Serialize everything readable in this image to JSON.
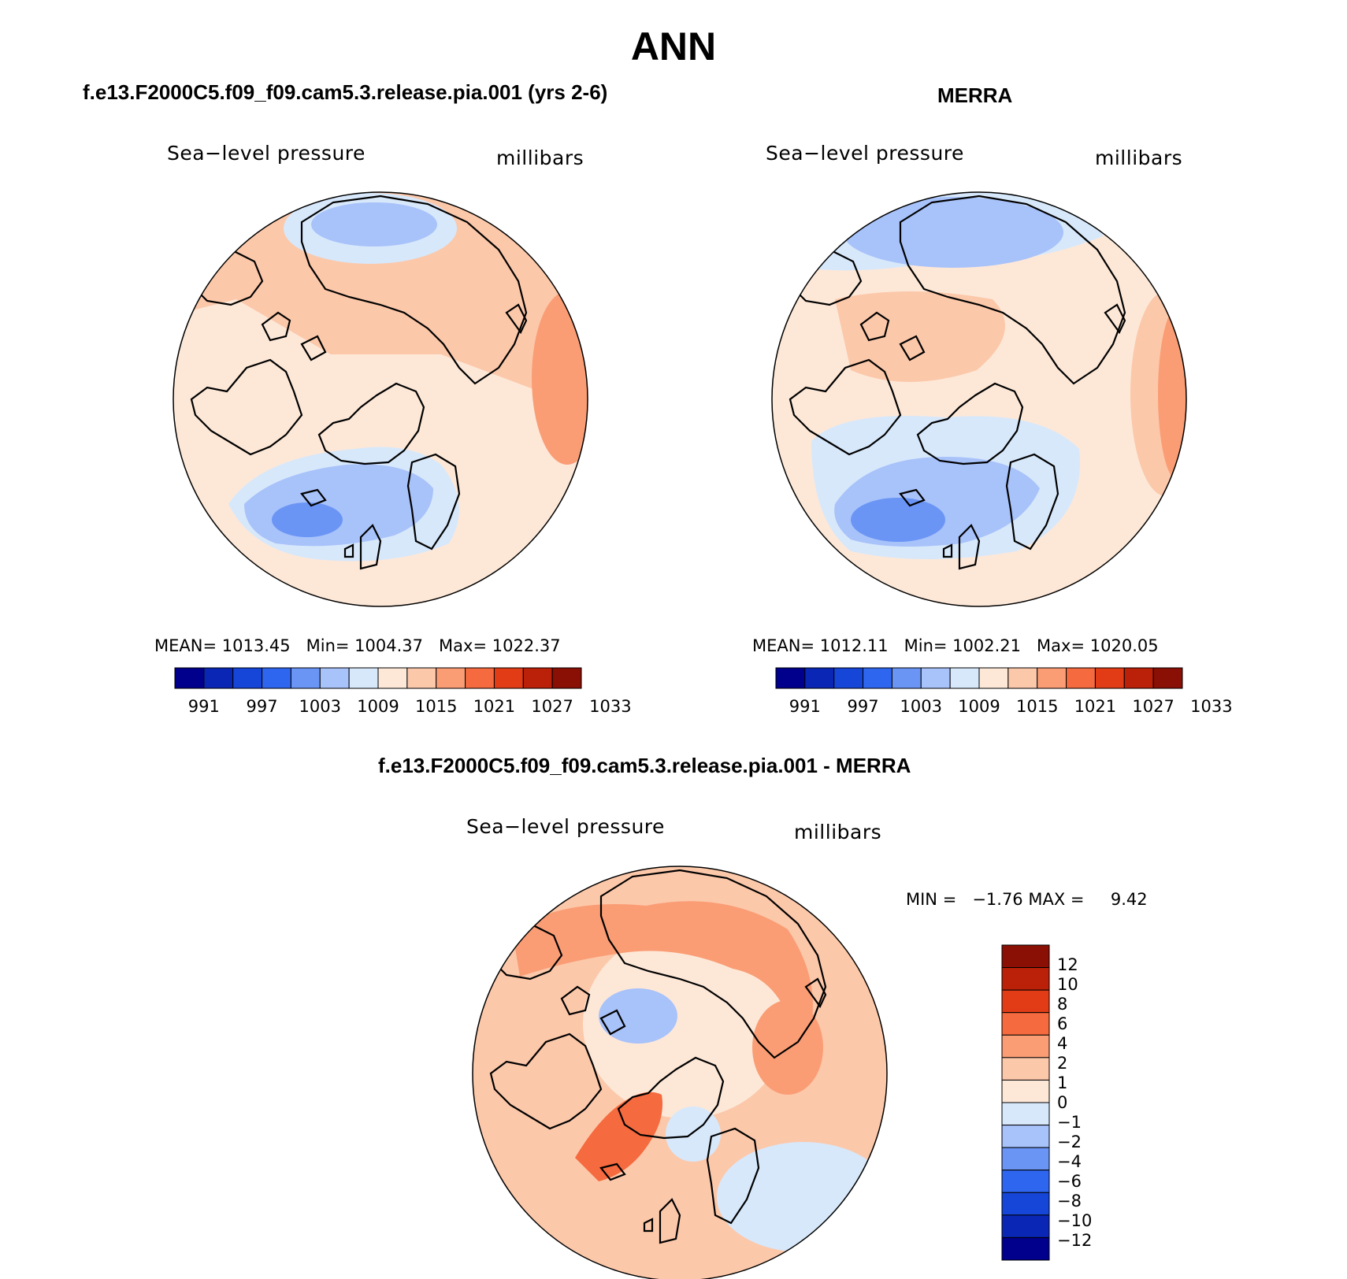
{
  "page": {
    "title": "ANN"
  },
  "panels": {
    "model": {
      "title": "f.e13.F2000C5.f09_f09.cam5.3.release.pia.001 (yrs 2-6)",
      "field": "Sea−level pressure",
      "units": "millibars",
      "stats": {
        "mean_label": "MEAN=",
        "mean": "1013.45",
        "min_label": "Min=",
        "min": "1004.37",
        "max_label": "Max=",
        "max": "1022.37"
      }
    },
    "obs": {
      "title": "MERRA",
      "field": "Sea−level pressure",
      "units": "millibars",
      "stats": {
        "mean_label": "MEAN=",
        "mean": "1012.11",
        "min_label": "Min=",
        "min": "1002.21",
        "max_label": "Max=",
        "max": "1020.05"
      }
    },
    "diff": {
      "title": "f.e13.F2000C5.f09_f09.cam5.3.release.pia.001 - MERRA",
      "field": "Sea−level pressure",
      "units": "millibars",
      "minmax": "MIN =   −1.76 MAX =     9.42"
    }
  },
  "colorbars": {
    "abs": {
      "colors": [
        "#00008c",
        "#0a26b4",
        "#1546d8",
        "#2f66f0",
        "#6a95f5",
        "#a8c2fa",
        "#d7e8fb",
        "#fde8d8",
        "#fcc8aa",
        "#fa9d75",
        "#f56a3e",
        "#e23c16",
        "#bb2108",
        "#8a0f05"
      ],
      "labels": [
        "991",
        "997",
        "1003",
        "1009",
        "1015",
        "1021",
        "1027",
        "1033"
      ]
    },
    "diff": {
      "colors": [
        "#8a0f05",
        "#bb2108",
        "#e23c16",
        "#f56a3e",
        "#fa9d75",
        "#fcc8aa",
        "#fde8d8",
        "#d7e8fb",
        "#a8c2fa",
        "#6a95f5",
        "#2f66f0",
        "#1546d8",
        "#0a26b4",
        "#00008c"
      ],
      "labels": [
        "12",
        "10",
        "8",
        "6",
        "4",
        "2",
        "1",
        "0",
        "−1",
        "−2",
        "−4",
        "−6",
        "−8",
        "−10",
        "−12"
      ]
    }
  },
  "map_colors": {
    "bg_warm": "#fde8d8",
    "light_pink": "#fcc8aa",
    "salmon": "#fa9d75",
    "orange": "#f56a3e",
    "lightest_blue": "#d7e8fb",
    "light_blue": "#a8c2fa",
    "blue": "#6a95f5",
    "dark_blue": "#2f66f0"
  }
}
